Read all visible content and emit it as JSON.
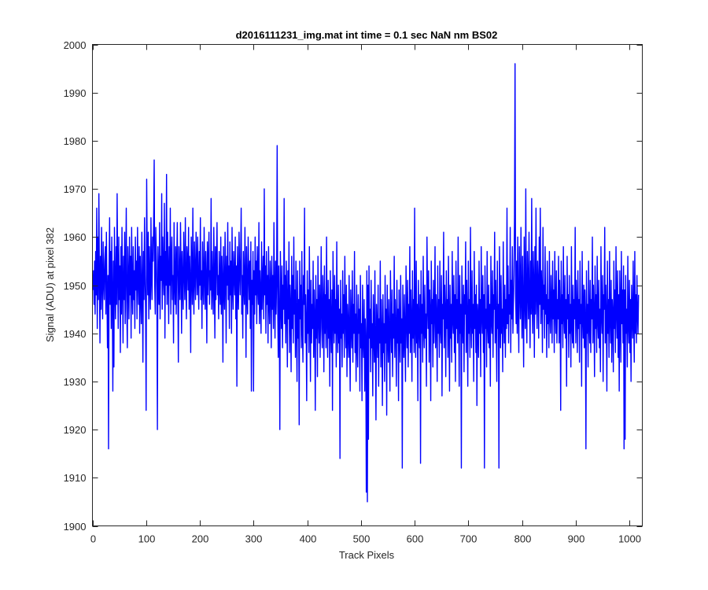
{
  "chart_data": {
    "type": "line",
    "title": "d2016111231_img.mat int time = 0.1 sec  NaN nm BS02",
    "xlabel": "Track Pixels",
    "ylabel": "Signal (ADU) at pixel 382",
    "xlim": [
      0,
      1024
    ],
    "ylim": [
      1900,
      2000
    ],
    "xticks": [
      0,
      100,
      200,
      300,
      400,
      500,
      600,
      700,
      800,
      900,
      1000
    ],
    "yticks": [
      1900,
      1910,
      1920,
      1930,
      1940,
      1950,
      1960,
      1970,
      1980,
      1990,
      2000
    ],
    "grid": false,
    "series": [
      {
        "color": "#0000ff",
        "x_start": 1,
        "x_step": 1,
        "values": [
          1949,
          1953,
          1946,
          1955,
          1944,
          1957,
          1948,
          1966,
          1941,
          1960,
          1947,
          1969,
          1952,
          1938,
          1956,
          1945,
          1962,
          1950,
          1943,
          1959,
          1951,
          1947,
          1955,
          1958,
          1944,
          1961,
          1949,
          1937,
          1952,
          1916,
          1953,
          1964,
          1946,
          1957,
          1941,
          1960,
          1948,
          1928,
          1955,
          1933,
          1962,
          1950,
          1943,
          1958,
          1946,
          1969,
          1952,
          1941,
          1960,
          1947,
          1954,
          1936,
          1958,
          1944,
          1962,
          1950,
          1938,
          1956,
          1947,
          1961,
          1942,
          1953,
          1966,
          1945,
          1937,
          1958,
          1951,
          1943,
          1960,
          1948,
          1956,
          1939,
          1962,
          1950,
          1944,
          1958,
          1947,
          1953,
          1941,
          1960,
          1949,
          1955,
          1943,
          1962,
          1951,
          1946,
          1958,
          1940,
          1956,
          1948,
          1942,
          1961,
          1950,
          1934,
          1957,
          1947,
          1964,
          1952,
          1945,
          1924,
          1972,
          1956,
          1948,
          1961,
          1943,
          1958,
          1950,
          1945,
          1964,
          1952,
          1947,
          1960,
          1955,
          1963,
          1976,
          1950,
          1944,
          1962,
          1956,
          1949,
          1920,
          1958,
          1951,
          1946,
          1963,
          1943,
          1956,
          1951,
          1969,
          1945,
          1960,
          1952,
          1948,
          1967,
          1939,
          1957,
          1950,
          1973,
          1946,
          1961,
          1953,
          1942,
          1958,
          1950,
          1966,
          1944,
          1955,
          1960,
          1947,
          1952,
          1938,
          1963,
          1951,
          1946,
          1958,
          1944,
          1955,
          1963,
          1949,
          1934,
          1958,
          1952,
          1947,
          1963,
          1954,
          1940,
          1957,
          1950,
          1945,
          1961,
          1953,
          1947,
          1964,
          1951,
          1943,
          1958,
          1955,
          1949,
          1962,
          1945,
          1956,
          1951,
          1936,
          1960,
          1953,
          1946,
          1966,
          1950,
          1944,
          1959,
          1952,
          1947,
          1961,
          1954,
          1948,
          1960,
          1951,
          1945,
          1957,
          1950,
          1964,
          1947,
          1953,
          1941,
          1959,
          1950,
          1946,
          1962,
          1952,
          1945,
          1957,
          1951,
          1938,
          1959,
          1948,
          1955,
          1961,
          1946,
          1953,
          1949,
          1968,
          1945,
          1957,
          1950,
          1944,
          1962,
          1952,
          1939,
          1958,
          1947,
          1955,
          1963,
          1948,
          1952,
          1943,
          1957,
          1950,
          1946,
          1960,
          1944,
          1956,
          1951,
          1934,
          1958,
          1949,
          1945,
          1961,
          1952,
          1938,
          1956,
          1950,
          1963,
          1947,
          1954,
          1941,
          1959,
          1948,
          1955,
          1940,
          1962,
          1950,
          1945,
          1957,
          1952,
          1948,
          1960,
          1943,
          1954,
          1929,
          1958,
          1950,
          1945,
          1961,
          1953,
          1948,
          1956,
          1966,
          1944,
          1952,
          1939,
          1957,
          1950,
          1946,
          1962,
          1951,
          1935,
          1958,
          1949,
          1944,
          1960,
          1953,
          1947,
          1955,
          1941,
          1959,
          1928,
          1951,
          1946,
          1957,
          1928,
          1953,
          1944,
          1960,
          1948,
          1955,
          1942,
          1958,
          1950,
          1946,
          1963,
          1942,
          1953,
          1948,
          1940,
          1959,
          1945,
          1951,
          1956,
          1943,
          1970,
          1948,
          1954,
          1940,
          1957,
          1946,
          1952,
          1938,
          1958,
          1947,
          1942,
          1955,
          1950,
          1937,
          1956,
          1945,
          1952,
          1941,
          1963,
          1948,
          1939,
          1955,
          1944,
          1951,
          1979,
          1946,
          1935,
          1954,
          1943,
          1920,
          1957,
          1948,
          1941,
          1954,
          1937,
          1950,
          1945,
          1968,
          1942,
          1952,
          1938,
          1955,
          1947,
          1933,
          1953,
          1943,
          1959,
          1936,
          1950,
          1945,
          1932,
          1956,
          1941,
          1952,
          1938,
          1960,
          1944,
          1949,
          1935,
          1955,
          1942,
          1930,
          1953,
          1939,
          1947,
          1921,
          1955,
          1943,
          1950,
          1937,
          1957,
          1941,
          1934,
          1952,
          1946,
          1966,
          1938,
          1948,
          1942,
          1926,
          1953,
          1940,
          1949,
          1936,
          1958,
          1944,
          1930,
          1951,
          1938,
          1946,
          1941,
          1955,
          1935,
          1949,
          1943,
          1924,
          1952,
          1939,
          1947,
          1931,
          1956,
          1944,
          1938,
          1950,
          1935,
          1945,
          1958,
          1941,
          1937,
          1952,
          1946,
          1932,
          1954,
          1940,
          1948,
          1937,
          1960,
          1943,
          1935,
          1951,
          1939,
          1947,
          1929,
          1953,
          1942,
          1936,
          1949,
          1924,
          1957,
          1944,
          1938,
          1952,
          1940,
          1947,
          1933,
          1959,
          1942,
          1936,
          1950,
          1938,
          1945,
          1914,
          1951,
          1939,
          1944,
          1933,
          1953,
          1940,
          1948,
          1935,
          1956,
          1943,
          1937,
          1950,
          1931,
          1946,
          1941,
          1935,
          1952,
          1939,
          1928,
          1949,
          1942,
          1937,
          1953,
          1934,
          1946,
          1940,
          1957,
          1936,
          1944,
          1930,
          1950,
          1938,
          1933,
          1948,
          1940,
          1945,
          1928,
          1952,
          1937,
          1942,
          1926,
          1950,
          1939,
          1935,
          1947,
          1928,
          1943,
          1938,
          1907,
          1953,
          1905,
          1950,
          1918,
          1954,
          1939,
          1945,
          1932,
          1951,
          1937,
          1942,
          1927,
          1948,
          1940,
          1934,
          1953,
          1938,
          1922,
          1946,
          1941,
          1935,
          1950,
          1929,
          1943,
          1938,
          1955,
          1933,
          1947,
          1940,
          1925,
          1948,
          1936,
          1942,
          1930,
          1952,
          1938,
          1945,
          1923,
          1950,
          1940,
          1934,
          1947,
          1939,
          1928,
          1953,
          1942,
          1936,
          1949,
          1931,
          1944,
          1939,
          1956,
          1935,
          1947,
          1941,
          1929,
          1951,
          1938,
          1945,
          1926,
          1949,
          1940,
          1934,
          1952,
          1938,
          1943,
          1912,
          1950,
          1941,
          1935,
          1948,
          1939,
          1930,
          1954,
          1943,
          1937,
          1951,
          1933,
          1946,
          1940,
          1958,
          1936,
          1949,
          1942,
          1930,
          1953,
          1939,
          1947,
          1936,
          1966,
          1941,
          1935,
          1955,
          1938,
          1946,
          1926,
          1951,
          1942,
          1937,
          1948,
          1913,
          1953,
          1940,
          1946,
          1934,
          1956,
          1941,
          1937,
          1950,
          1939,
          1944,
          1929,
          1960,
          1947,
          1941,
          1953,
          1934,
          1949,
          1944,
          1926,
          1955,
          1942,
          1947,
          1933,
          1951,
          1938,
          1944,
          1958,
          1937,
          1948,
          1943,
          1930,
          1954,
          1940,
          1947,
          1935,
          1955,
          1941,
          1938,
          1952,
          1927,
          1946,
          1943,
          1961,
          1937,
          1950,
          1944,
          1931,
          1953,
          1941,
          1947,
          1935,
          1956,
          1942,
          1928,
          1950,
          1939,
          1946,
          1934,
          1957,
          1943,
          1940,
          1952,
          1936,
          1948,
          1930,
          1955,
          1941,
          1947,
          1938,
          1960,
          1944,
          1929,
          1952,
          1940,
          1946,
          1912,
          1954,
          1943,
          1938,
          1950,
          1932,
          1948,
          1944,
          1959,
          1936,
          1951,
          1942,
          1929,
          1955,
          1940,
          1947,
          1935,
          1962,
          1943,
          1937,
          1953,
          1940,
          1946,
          1930,
          1957,
          1941,
          1948,
          1936,
          1950,
          1925,
          1946,
          1943,
          1935,
          1955,
          1940,
          1947,
          1931,
          1958,
          1944,
          1940,
          1952,
          1936,
          1948,
          1912,
          1954,
          1941,
          1945,
          1933,
          1957,
          1942,
          1938,
          1950,
          1937,
          1946,
          1929,
          1956,
          1943,
          1940,
          1953,
          1935,
          1948,
          1945,
          1961,
          1938,
          1951,
          1942,
          1930,
          1955,
          1941,
          1946,
          1912,
          1958,
          1947,
          1937,
          1952,
          1940,
          1945,
          1932,
          1959,
          1944,
          1938,
          1950,
          1935,
          1947,
          1941,
          1966,
          1942,
          1954,
          1938,
          1948,
          1944,
          1962,
          1936,
          1951,
          1943,
          1958,
          1940,
          1946,
          1952,
          1964,
          1996,
          1948,
          1942,
          1955,
          1940,
          1960,
          1945,
          1936,
          1958,
          1950,
          1943,
          1962,
          1947,
          1939,
          1956,
          1945,
          1933,
          1960,
          1948,
          1941,
          1970,
          1945,
          1938,
          1957,
          1950,
          1943,
          1961,
          1947,
          1937,
          1955,
          1944,
          1968,
          1946,
          1940,
          1957,
          1950,
          1935,
          1958,
          1944,
          1966,
          1948,
          1941,
          1955,
          1950,
          1939,
          1960,
          1946,
          1966,
          1942,
          1953,
          1948,
          1936,
          1962,
          1945,
          1950,
          1939,
          1958,
          1944,
          1948,
          1935,
          1955,
          1942,
          1947,
          1937,
          1957,
          1944,
          1940,
          1952,
          1946,
          1938,
          1955,
          1943,
          1949,
          1936,
          1957,
          1945,
          1940,
          1953,
          1938,
          1947,
          1943,
          1956,
          1938,
          1951,
          1945,
          1924,
          1955,
          1942,
          1948,
          1937,
          1958,
          1944,
          1940,
          1952,
          1939,
          1947,
          1929,
          1956,
          1943,
          1948,
          1935,
          1952,
          1940,
          1946,
          1933,
          1958,
          1942,
          1938,
          1950,
          1937,
          1947,
          1943,
          1962,
          1938,
          1951,
          1945,
          1936,
          1953,
          1941,
          1947,
          1934,
          1955,
          1942,
          1946,
          1929,
          1957,
          1944,
          1939,
          1950,
          1937,
          1949,
          1943,
          1916,
          1953,
          1940,
          1946,
          1933,
          1955,
          1942,
          1938,
          1951,
          1936,
          1947,
          1943,
          1960,
          1938,
          1950,
          1944,
          1931,
          1954,
          1941,
          1948,
          1936,
          1956,
          1943,
          1939,
          1951,
          1937,
          1945,
          1932,
          1958,
          1944,
          1940,
          1952,
          1930,
          1948,
          1945,
          1962,
          1938,
          1950,
          1943,
          1928,
          1955,
          1940,
          1947,
          1935,
          1957,
          1943,
          1938,
          1951,
          1934,
          1947,
          1944,
          1932,
          1955,
          1941,
          1949,
          1936,
          1958,
          1945,
          1939,
          1953,
          1935,
          1948,
          1928,
          1953,
          1946,
          1934,
          1957,
          1942,
          1949,
          1938,
          1954,
          1916,
          1949,
          1918,
          1952,
          1940,
          1945,
          1933,
          1956,
          1942,
          1938,
          1951,
          1936,
          1947,
          1930,
          1950,
          1944,
          1939,
          1955,
          1942,
          1934,
          1957,
          1940,
          1948,
          1938,
          1952,
          1944,
          1940,
          1948
        ]
      }
    ]
  }
}
